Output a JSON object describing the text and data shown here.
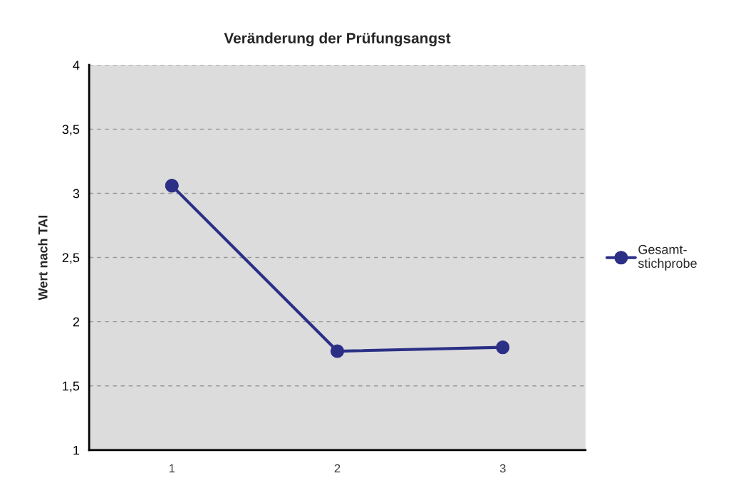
{
  "chart_data": {
    "type": "line",
    "title": "Veränderung der Prüfungsangst",
    "ylabel": "Wert nach TAI",
    "categories": [
      "1",
      "2",
      "3"
    ],
    "series": [
      {
        "name": "Gesamt-\nstichprobe",
        "color": "#2b2f86",
        "values": [
          3.06,
          1.77,
          1.8
        ]
      }
    ],
    "ylim": [
      1,
      4
    ],
    "yticks": [
      1,
      {
        "value": 1.5,
        "label": "1,5"
      },
      2,
      {
        "value": 2.5,
        "label": "2,5"
      },
      3,
      {
        "value": 3.5,
        "label": "3,5"
      },
      4
    ],
    "grid": "y",
    "legend": "right",
    "marker": "circle",
    "line_style": "solid"
  }
}
